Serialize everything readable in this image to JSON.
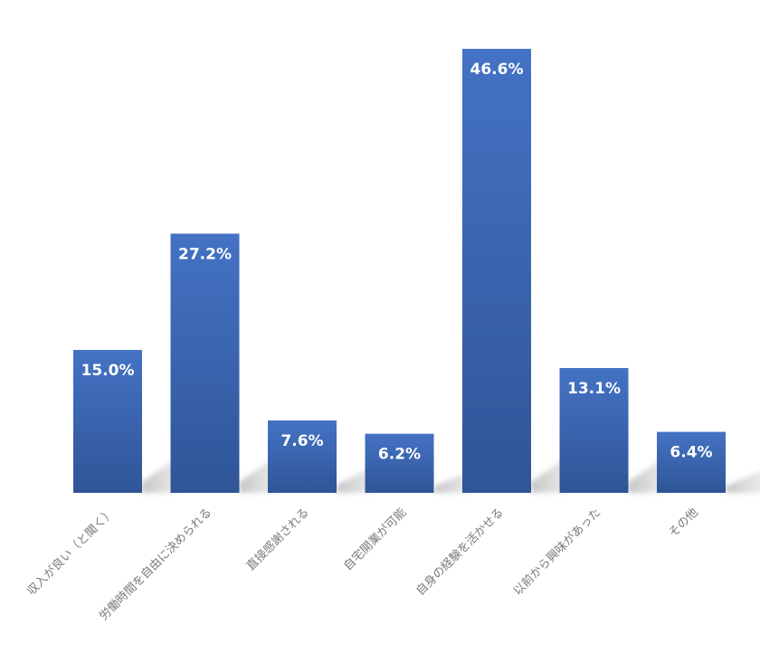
{
  "chart_data": {
    "type": "bar",
    "categories": [
      "収入が良い（と聞く）",
      "労働時間を自由に決められる",
      "直接感謝される",
      "自宅開業が可能",
      "自身の経験を活かせる",
      "以前から興味があった",
      "その他"
    ],
    "values": [
      15.0,
      27.2,
      7.6,
      6.2,
      46.6,
      13.1,
      6.4
    ],
    "value_labels": [
      "15.0%",
      "27.2%",
      "7.6%",
      "6.2%",
      "46.6%",
      "13.1%",
      "6.4%"
    ],
    "ylim": [
      0,
      50
    ],
    "grid": false,
    "legend": "none",
    "colors": {
      "bar_top": "#4472c4",
      "bar_bottom": "#2f5597",
      "shadow": "#c8c8c8"
    }
  }
}
